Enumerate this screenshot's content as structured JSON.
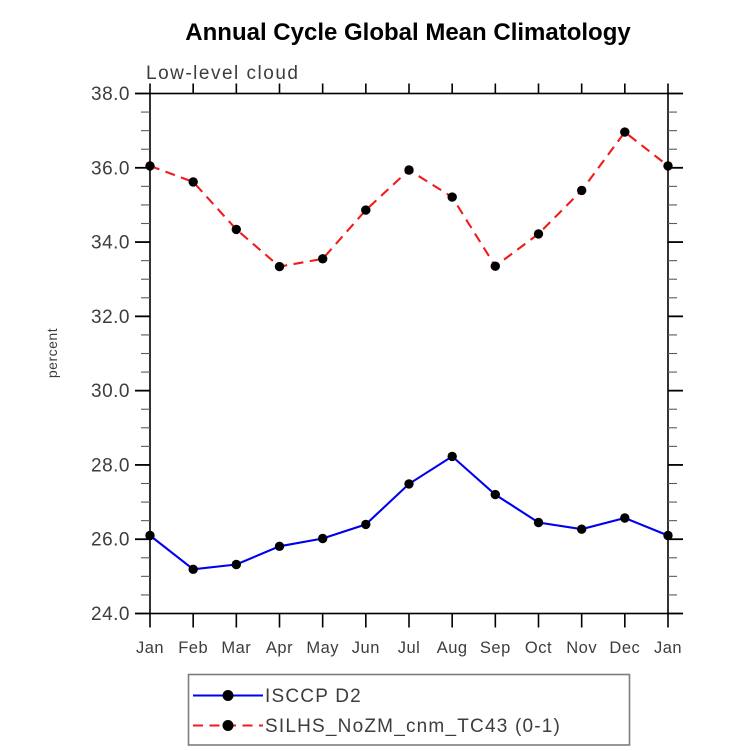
{
  "page": {
    "background": "#ffffff",
    "frame_color": "#000000",
    "text_color": "#3d3d3d",
    "legend_border_color": "#7d7d7d"
  },
  "chart_data": {
    "type": "line",
    "title": "Annual Cycle Global Mean Climatology",
    "subtitle": "Low-level cloud",
    "ylabel": "percent",
    "xlabel": "",
    "categories": [
      "Jan",
      "Feb",
      "Mar",
      "Apr",
      "May",
      "Jun",
      "Jul",
      "Aug",
      "Sep",
      "Oct",
      "Nov",
      "Dec",
      "Jan"
    ],
    "ylim": [
      24.0,
      38.0
    ],
    "y_major_step": 2.0,
    "y_minor_step": 0.5,
    "y_tick_labels": [
      "24.0",
      "26.0",
      "28.0",
      "30.0",
      "32.0",
      "34.0",
      "36.0",
      "38.0"
    ],
    "grid": false,
    "legend_position": "bottom",
    "marker": "filled-circle",
    "marker_color": "#000000",
    "series": [
      {
        "name": "ISCCP D2",
        "color": "#0000ee",
        "style": "solid",
        "values": [
          26.1,
          25.19,
          25.32,
          25.81,
          26.02,
          26.4,
          27.49,
          28.23,
          27.2,
          26.45,
          26.27,
          26.57,
          26.1
        ]
      },
      {
        "name": "SILHS_NoZM_cnm_TC43 (0-1)",
        "color": "#f21b1b",
        "style": "dashed",
        "values": [
          36.05,
          35.62,
          34.34,
          33.34,
          33.55,
          34.86,
          35.94,
          35.21,
          33.35,
          34.22,
          35.39,
          36.96,
          36.05
        ]
      }
    ]
  }
}
